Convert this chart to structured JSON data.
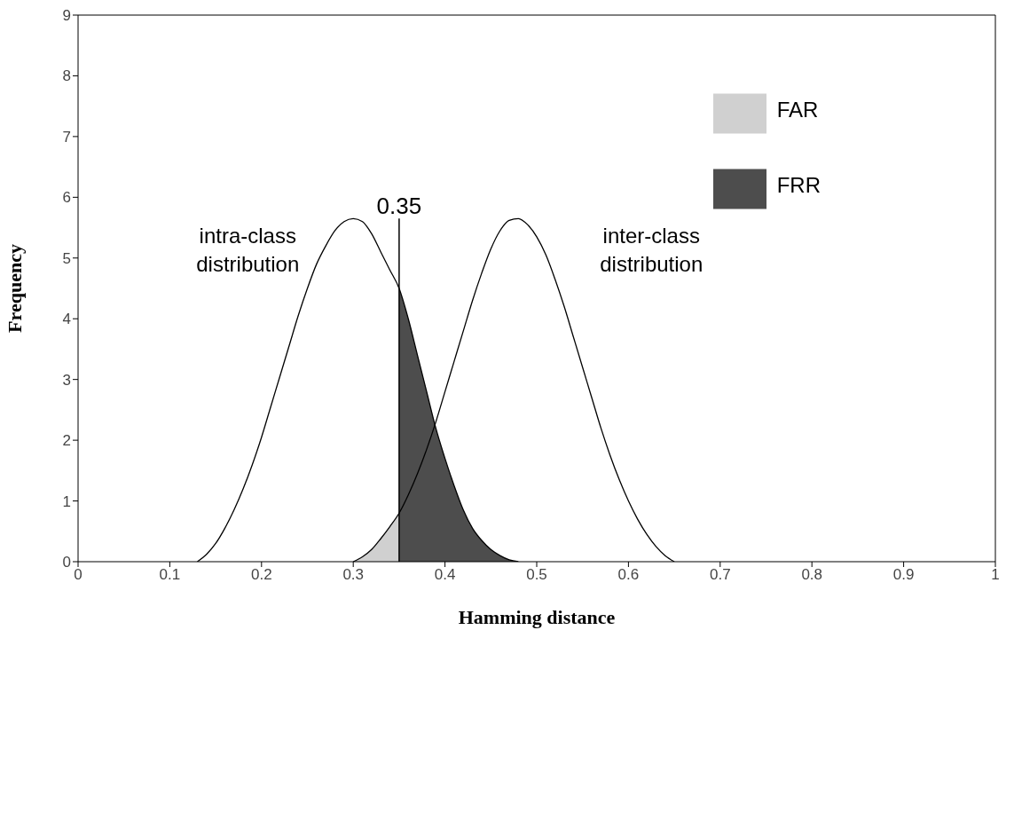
{
  "chart_data": {
    "type": "line",
    "xlabel": "Hamming distance",
    "ylabel": "Frequency",
    "xlim": [
      0,
      1
    ],
    "ylim": [
      0,
      9
    ],
    "xticks": [
      0,
      0.1,
      0.2,
      0.3,
      0.4,
      0.5,
      0.6,
      0.7,
      0.8,
      0.9,
      1
    ],
    "yticks": [
      0,
      1,
      2,
      3,
      4,
      5,
      6,
      7,
      8,
      9
    ],
    "grid": false,
    "legend": "top right",
    "marker": "none",
    "line_style": "solid",
    "x": [
      0.13,
      0.14,
      0.15,
      0.16,
      0.17,
      0.18,
      0.19,
      0.2,
      0.21,
      0.22,
      0.23,
      0.24,
      0.25,
      0.26,
      0.27,
      0.28,
      0.29,
      0.3,
      0.31,
      0.32,
      0.33,
      0.34,
      0.35,
      0.36,
      0.37,
      0.38,
      0.39,
      0.4,
      0.41,
      0.42,
      0.43,
      0.44,
      0.45,
      0.46,
      0.47,
      0.48,
      0.49,
      0.5,
      0.51,
      0.52,
      0.53,
      0.54,
      0.55,
      0.56,
      0.57,
      0.58,
      0.59,
      0.6,
      0.61,
      0.62,
      0.63,
      0.64,
      0.65
    ],
    "series": [
      {
        "name": "FRR",
        "type": "area",
        "color": "#4d4d4d",
        "values": [
          null,
          null,
          null,
          null,
          null,
          null,
          null,
          null,
          null,
          null,
          null,
          null,
          null,
          null,
          null,
          null,
          null,
          null,
          null,
          null,
          null,
          null,
          4.5,
          4.0,
          3.4,
          2.8,
          2.2,
          1.7,
          1.25,
          0.85,
          0.55,
          0.35,
          0.2,
          0.1,
          0.03,
          0,
          null,
          null,
          null,
          null,
          null,
          null,
          null,
          null,
          null,
          null,
          null,
          null,
          null,
          null,
          null,
          null,
          null
        ]
      },
      {
        "name": "FAR",
        "type": "area",
        "color": "#d0d0d0",
        "values": [
          null,
          null,
          null,
          null,
          null,
          null,
          null,
          null,
          null,
          null,
          null,
          null,
          null,
          null,
          null,
          null,
          null,
          0,
          0.08,
          0.2,
          0.38,
          0.58,
          0.8,
          null,
          null,
          null,
          null,
          null,
          null,
          null,
          null,
          null,
          null,
          null,
          null,
          null,
          null,
          null,
          null,
          null,
          null,
          null,
          null,
          null,
          null,
          null,
          null,
          null,
          null,
          null,
          null,
          null,
          null
        ]
      },
      {
        "color": "#000000",
        "values": [
          0,
          0.12,
          0.3,
          0.55,
          0.85,
          1.2,
          1.6,
          2.05,
          2.55,
          3.05,
          3.55,
          4.05,
          4.5,
          4.9,
          5.2,
          5.45,
          5.6,
          5.65,
          5.6,
          5.4,
          5.1,
          4.8,
          4.5,
          4.0,
          3.4,
          2.8,
          2.2,
          1.7,
          1.25,
          0.85,
          0.55,
          0.35,
          0.2,
          0.1,
          0.03,
          0,
          null,
          null,
          null,
          null,
          null,
          null,
          null,
          null,
          null,
          null,
          null,
          null,
          null,
          null,
          null,
          null,
          null
        ]
      },
      {
        "color": "#000000",
        "values": [
          null,
          null,
          null,
          null,
          null,
          null,
          null,
          null,
          null,
          null,
          null,
          null,
          null,
          null,
          null,
          null,
          null,
          0,
          0.08,
          0.2,
          0.38,
          0.58,
          0.8,
          1.1,
          1.45,
          1.85,
          2.3,
          2.8,
          3.3,
          3.8,
          4.3,
          4.75,
          5.15,
          5.45,
          5.62,
          5.65,
          5.55,
          5.35,
          5.05,
          4.65,
          4.2,
          3.7,
          3.2,
          2.7,
          2.2,
          1.75,
          1.35,
          1.0,
          0.7,
          0.45,
          0.25,
          0.1,
          0
        ]
      }
    ],
    "ref_lines": [
      {
        "axis": "x",
        "value": 0.35,
        "label": "0.35",
        "color": "#000000"
      }
    ],
    "annotations": [
      "intra-class distribution",
      "inter-class distribution"
    ]
  }
}
